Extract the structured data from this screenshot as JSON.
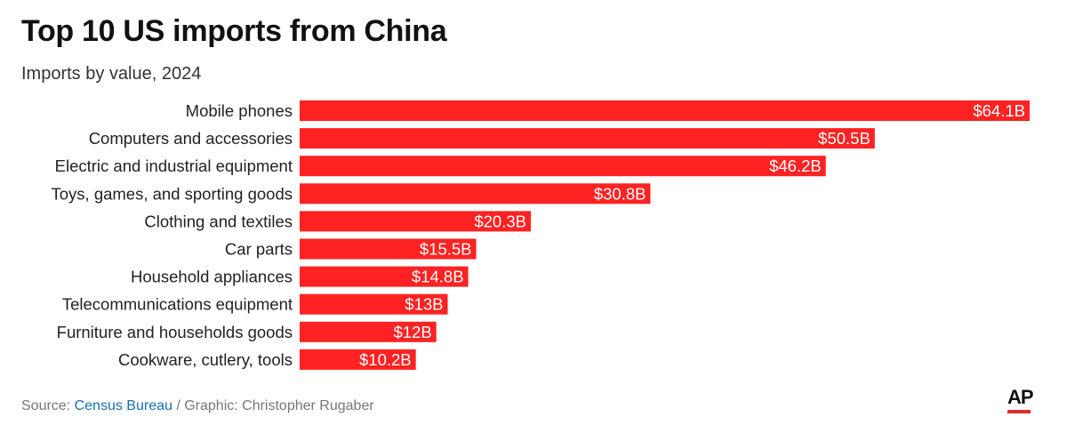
{
  "header": {
    "title": "Top 10 US imports from China",
    "subtitle": "Imports by value, 2024"
  },
  "footer": {
    "source_prefix": "Source: ",
    "source_link": "Census Bureau",
    "credit": " / Graphic: Christopher Rugaber",
    "logo": "AP"
  },
  "colors": {
    "bar": "#ff2222",
    "link": "#1a6fb5",
    "logo_accent": "#e32b2b"
  },
  "chart_data": {
    "type": "bar",
    "orientation": "horizontal",
    "title": "Top 10 US imports from China",
    "subtitle": "Imports by value, 2024",
    "xlabel": "",
    "ylabel": "",
    "unit": "billion USD",
    "categories": [
      "Mobile phones",
      "Computers and accessories",
      "Electric and industrial equipment",
      "Toys, games, and sporting goods",
      "Clothing and textiles",
      "Car parts",
      "Household appliances",
      "Telecommunications equipment",
      "Furniture and households goods",
      "Cookware, cutlery, tools"
    ],
    "values": [
      64.1,
      50.5,
      46.2,
      30.8,
      20.3,
      15.5,
      14.8,
      13,
      12,
      10.2
    ],
    "value_labels": [
      "$64.1B",
      "$50.5B",
      "$46.2B",
      "$30.8B",
      "$20.3B",
      "$15.5B",
      "$14.8B",
      "$13B",
      "$12B",
      "$10.2B"
    ],
    "xlim": [
      0,
      64.1
    ],
    "grid": false,
    "legend": "none"
  }
}
